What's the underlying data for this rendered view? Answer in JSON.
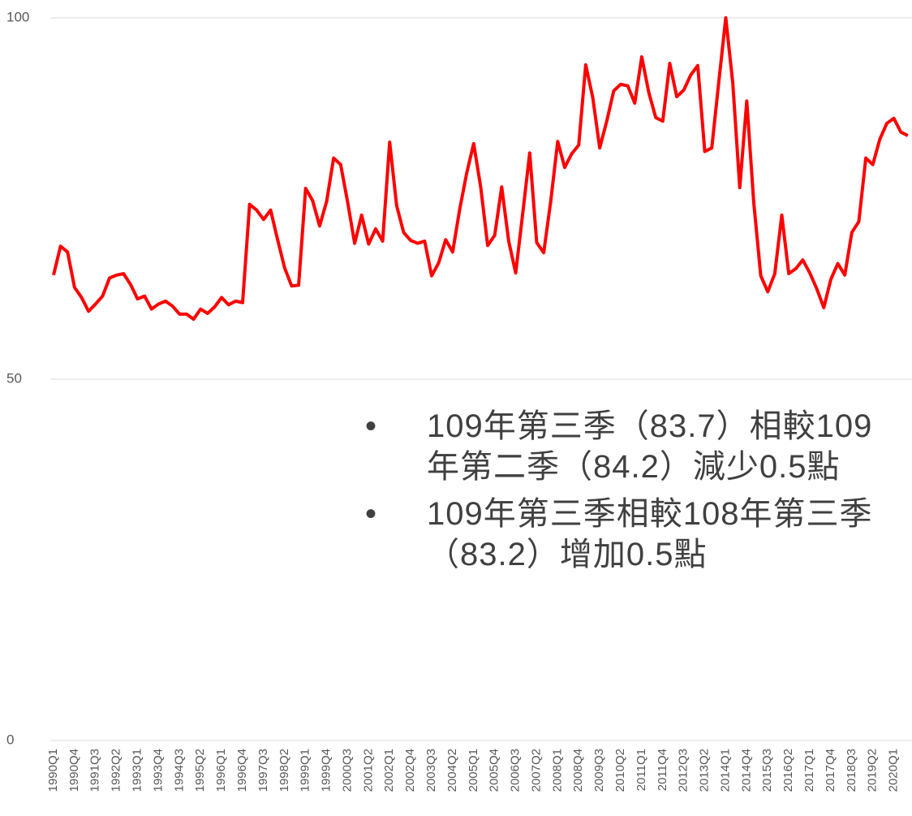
{
  "chart_data": {
    "type": "line",
    "categories": [
      "1990Q1",
      null,
      null,
      "1990Q4",
      null,
      null,
      "1991Q3",
      null,
      null,
      "1992Q2",
      null,
      null,
      "1993Q1",
      null,
      null,
      "1993Q4",
      null,
      null,
      "1994Q3",
      null,
      null,
      "1995Q2",
      null,
      null,
      "1996Q1",
      null,
      null,
      "1996Q4",
      null,
      null,
      "1997Q3",
      null,
      null,
      "1998Q2",
      null,
      null,
      "1999Q1",
      null,
      null,
      "1999Q4",
      null,
      null,
      "2000Q3",
      null,
      null,
      "2001Q2",
      null,
      null,
      "2002Q1",
      null,
      null,
      "2002Q4",
      null,
      null,
      "2003Q3",
      null,
      null,
      "2004Q2",
      null,
      null,
      "2005Q1",
      null,
      null,
      "2005Q4",
      null,
      null,
      "2006Q3",
      null,
      null,
      "2007Q2",
      null,
      null,
      "2008Q1",
      null,
      null,
      "2008Q4",
      null,
      null,
      "2009Q3",
      null,
      null,
      "2010Q2",
      null,
      null,
      "2011Q1",
      null,
      null,
      "2011Q4",
      null,
      null,
      "2012Q3",
      null,
      null,
      "2013Q2",
      null,
      null,
      "2014Q1",
      null,
      null,
      "2014Q4",
      null,
      null,
      "2015Q3",
      null,
      null,
      "2016Q2",
      null,
      null,
      "2017Q1",
      null,
      null,
      "2017Q4",
      null,
      null,
      "2018Q3",
      null,
      null,
      "2019Q2",
      null,
      null,
      "2020Q1",
      null,
      null
    ],
    "values": [
      64.4,
      68.4,
      67.6,
      62.7,
      61.3,
      59.4,
      60.4,
      61.5,
      64.0,
      64.4,
      64.6,
      63.1,
      61.1,
      61.5,
      59.7,
      60.4,
      60.8,
      60.1,
      59.0,
      59.0,
      58.3,
      59.7,
      59.1,
      60.0,
      61.3,
      60.3,
      60.8,
      60.6,
      74.2,
      73.4,
      72.1,
      73.4,
      69.3,
      65.4,
      62.9,
      63.0,
      76.4,
      74.7,
      71.2,
      74.6,
      80.6,
      79.7,
      74.5,
      68.8,
      72.7,
      68.7,
      70.8,
      69.1,
      82.8,
      74.0,
      70.3,
      69.2,
      68.8,
      69.1,
      64.3,
      66.1,
      69.3,
      67.6,
      73.5,
      78.5,
      82.6,
      76.6,
      68.5,
      69.9,
      76.6,
      69.1,
      64.7,
      72.9,
      81.3,
      68.9,
      67.5,
      74.6,
      82.9,
      79.3,
      81.2,
      82.4,
      93.5,
      89.0,
      82.0,
      85.7,
      89.9,
      90.8,
      90.6,
      88.2,
      94.6,
      89.7,
      86.2,
      85.7,
      93.7,
      89.1,
      90.0,
      92.1,
      93.4,
      81.5,
      82.0,
      91.1,
      100,
      91.0,
      76.5,
      88.5,
      74.4,
      64.3,
      62.1,
      64.6,
      72.7,
      64.6,
      65.3,
      66.5,
      64.7,
      62.5,
      59.9,
      63.8,
      66.0,
      64.4,
      70.3,
      71.8,
      80.6,
      79.7,
      83.2,
      85.4,
      86.1,
      84.2,
      83.7
    ],
    "color": "#ff0000",
    "ylim": [
      0,
      100
    ],
    "yticks": [
      0,
      50,
      100
    ],
    "grid": true,
    "annotations": [
      "109年第三季（83.7）相較109年第二季（84.2）減少0.5點",
      "109年第三季相較108年第三季（83.2）增加0.5點"
    ]
  }
}
